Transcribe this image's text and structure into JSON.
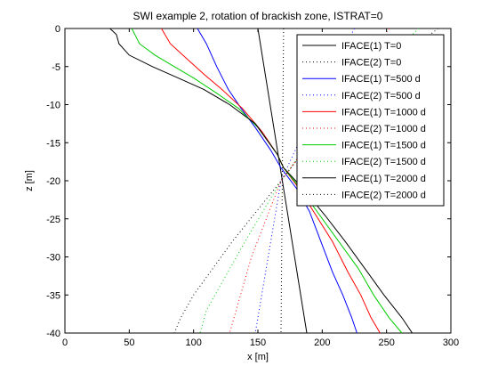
{
  "chart_data": {
    "type": "line",
    "title": "SWI example 2, rotation of brackish zone, ISTRAT=0",
    "xlabel": "x [m]",
    "ylabel": "z [m]",
    "xlim": [
      0,
      300
    ],
    "ylim": [
      -40,
      0
    ],
    "xticks": [
      0,
      50,
      100,
      150,
      200,
      250,
      300
    ],
    "yticks": [
      0,
      -5,
      -10,
      -15,
      -20,
      -25,
      -30,
      -35,
      -40
    ],
    "grid": false,
    "legend_position": "top-right",
    "series": [
      {
        "name": "IFACE(1) T=0",
        "color": "#000000",
        "dash": "solid",
        "x": [
          150,
          188
        ],
        "y": [
          0,
          -40
        ]
      },
      {
        "name": "IFACE(2) T=0",
        "color": "#000000",
        "dash": "dotted",
        "x": [
          170,
          168
        ],
        "y": [
          0,
          -40
        ]
      },
      {
        "name": "IFACE(1) T=500 d",
        "color": "#0000ff",
        "dash": "solid",
        "x": [
          103,
          110,
          118,
          127,
          137,
          148,
          160,
          168,
          180,
          190,
          199,
          208,
          216,
          223,
          227
        ],
        "y": [
          0,
          -2,
          -5,
          -8,
          -10.5,
          -13,
          -16,
          -18.3,
          -21,
          -24,
          -28,
          -32,
          -35,
          -38,
          -40
        ]
      },
      {
        "name": "IFACE(2) T=500 d",
        "color": "#0000ff",
        "dash": "dotted",
        "x": [
          225,
          190,
          168,
          148
        ],
        "y": [
          0,
          -12,
          -20,
          -40
        ]
      },
      {
        "name": "IFACE(1) T=1000 d",
        "color": "#ff0000",
        "dash": "solid",
        "x": [
          75,
          82,
          95,
          108,
          122,
          138,
          153,
          165,
          170,
          182,
          195,
          208,
          220,
          230,
          238,
          245
        ],
        "y": [
          0,
          -2,
          -4,
          -6,
          -8,
          -10.5,
          -13.5,
          -16.5,
          -18.3,
          -21,
          -24.5,
          -28,
          -32,
          -35,
          -38,
          -40
        ]
      },
      {
        "name": "IFACE(2) T=1000 d",
        "color": "#ff0000",
        "dash": "dotted",
        "x": [
          252,
          220,
          190,
          168,
          145,
          128
        ],
        "y": [
          0,
          -8,
          -15,
          -20,
          -30,
          -40
        ]
      },
      {
        "name": "IFACE(1) T=1500 d",
        "color": "#00cc00",
        "dash": "solid",
        "x": [
          52,
          58,
          70,
          85,
          100,
          118,
          135,
          150,
          165,
          170,
          183,
          198,
          213,
          228,
          240,
          252,
          262
        ],
        "y": [
          0,
          -2,
          -3.5,
          -5,
          -6.5,
          -8.5,
          -10.5,
          -13,
          -16.5,
          -18.3,
          -21,
          -24.5,
          -28,
          -31.5,
          -35,
          -38,
          -40
        ]
      },
      {
        "name": "IFACE(2) T=1500 d",
        "color": "#00cc00",
        "dash": "dotted",
        "x": [
          275,
          245,
          215,
          190,
          168,
          140,
          110,
          105
        ],
        "y": [
          0,
          -5,
          -11,
          -15,
          -20,
          -28,
          -37,
          -40
        ]
      },
      {
        "name": "IFACE(1) T=2000 d",
        "color": "#000000",
        "dash": "solid",
        "x": [
          35,
          40,
          42,
          50,
          68,
          88,
          108,
          128,
          148,
          165,
          170,
          185,
          202,
          218,
          233,
          248,
          262,
          270,
          278
        ],
        "y": [
          0,
          -0.8,
          -2,
          -3.5,
          -5,
          -6.5,
          -8,
          -10,
          -12.5,
          -16.5,
          -18.3,
          -21,
          -24.5,
          -28,
          -31.5,
          -35,
          -38,
          -40,
          -40
        ]
      },
      {
        "name": "IFACE(2) T=2000 d",
        "color": "#000000",
        "dash": "dotted",
        "x": [
          290,
          260,
          230,
          200,
          168,
          130,
          100,
          90,
          85
        ],
        "y": [
          0,
          -4,
          -8,
          -13,
          -20,
          -28,
          -35,
          -38,
          -40
        ]
      }
    ]
  }
}
